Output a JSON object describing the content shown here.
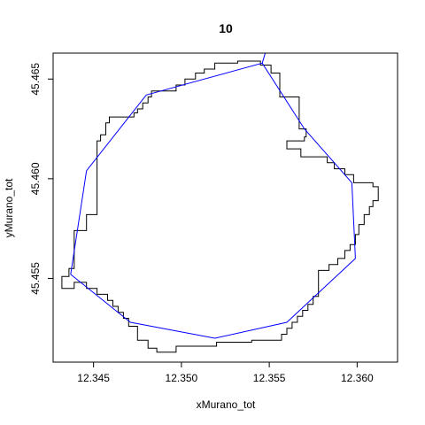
{
  "chart_data": {
    "type": "line",
    "title": "10",
    "xlabel": "xMurano_tot",
    "ylabel": "yMurano_tot",
    "xlim": [
      12.3427,
      12.3623
    ],
    "ylim": [
      45.4508,
      45.4663
    ],
    "x_ticks": [
      "12.345",
      "12.350",
      "12.355",
      "12.360"
    ],
    "y_ticks": [
      "45.455",
      "45.460",
      "45.465"
    ],
    "grid": false,
    "legend": "none",
    "series": [
      {
        "color": "#000000",
        "style": "step-outline",
        "points": [
          [
            12.3432,
            45.4548
          ],
          [
            12.3432,
            45.4551
          ],
          [
            12.3436,
            45.4551
          ],
          [
            12.3436,
            45.4555
          ],
          [
            12.3439,
            45.4555
          ],
          [
            12.3439,
            45.4566
          ],
          [
            12.3439,
            45.4574
          ],
          [
            12.3446,
            45.4574
          ],
          [
            12.3446,
            45.4582
          ],
          [
            12.3452,
            45.4582
          ],
          [
            12.3452,
            45.4609
          ],
          [
            12.3452,
            45.4619
          ],
          [
            12.3454,
            45.4619
          ],
          [
            12.3454,
            45.4622
          ],
          [
            12.3457,
            45.4622
          ],
          [
            12.3457,
            45.4628
          ],
          [
            12.3459,
            45.4628
          ],
          [
            12.3459,
            45.4631
          ],
          [
            12.3473,
            45.4631
          ],
          [
            12.3473,
            45.4633
          ],
          [
            12.3475,
            45.4633
          ],
          [
            12.3475,
            45.4635
          ],
          [
            12.3478,
            45.4635
          ],
          [
            12.3478,
            45.4638
          ],
          [
            12.3481,
            45.4638
          ],
          [
            12.3481,
            45.4641
          ],
          [
            12.3483,
            45.4641
          ],
          [
            12.3483,
            45.4644
          ],
          [
            12.3497,
            45.4644
          ],
          [
            12.3497,
            45.4647
          ],
          [
            12.3502,
            45.4647
          ],
          [
            12.3502,
            45.465
          ],
          [
            12.3508,
            45.465
          ],
          [
            12.3508,
            45.4653
          ],
          [
            12.3513,
            45.4653
          ],
          [
            12.3513,
            45.4655
          ],
          [
            12.3519,
            45.4655
          ],
          [
            12.3519,
            45.4658
          ],
          [
            12.3532,
            45.4658
          ],
          [
            12.3532,
            45.4659
          ],
          [
            12.3545,
            45.4659
          ],
          [
            12.3545,
            45.4657
          ],
          [
            12.3551,
            45.4657
          ],
          [
            12.3551,
            45.4653
          ],
          [
            12.3556,
            45.4653
          ],
          [
            12.3556,
            45.4644
          ],
          [
            12.3556,
            45.4641
          ],
          [
            12.3567,
            45.4641
          ],
          [
            12.3567,
            45.4625
          ],
          [
            12.3571,
            45.4625
          ],
          [
            12.3571,
            45.4621
          ],
          [
            12.357,
            45.4621
          ],
          [
            12.357,
            45.4619
          ],
          [
            12.356,
            45.4619
          ],
          [
            12.356,
            45.4615
          ],
          [
            12.3568,
            45.4615
          ],
          [
            12.3568,
            45.4611
          ],
          [
            12.3583,
            45.4611
          ],
          [
            12.3583,
            45.4608
          ],
          [
            12.3587,
            45.4608
          ],
          [
            12.3587,
            45.4605
          ],
          [
            12.3593,
            45.4605
          ],
          [
            12.3593,
            45.4602
          ],
          [
            12.3598,
            45.4602
          ],
          [
            12.3598,
            45.4598
          ],
          [
            12.3609,
            45.4598
          ],
          [
            12.3609,
            45.4596
          ],
          [
            12.3612,
            45.4596
          ],
          [
            12.3612,
            45.4589
          ],
          [
            12.3609,
            45.4589
          ],
          [
            12.3609,
            45.4586
          ],
          [
            12.3607,
            45.4586
          ],
          [
            12.3607,
            45.4582
          ],
          [
            12.3604,
            45.4582
          ],
          [
            12.3604,
            45.4577
          ],
          [
            12.3601,
            45.4577
          ],
          [
            12.3601,
            45.4572
          ],
          [
            12.3599,
            45.4572
          ],
          [
            12.3599,
            45.4567
          ],
          [
            12.3596,
            45.4567
          ],
          [
            12.3596,
            45.4564
          ],
          [
            12.3593,
            45.4564
          ],
          [
            12.3593,
            45.456
          ],
          [
            12.3589,
            45.456
          ],
          [
            12.3589,
            45.4557
          ],
          [
            12.3584,
            45.4557
          ],
          [
            12.3584,
            45.4554
          ],
          [
            12.3578,
            45.4554
          ],
          [
            12.3578,
            45.4541
          ],
          [
            12.3575,
            45.4541
          ],
          [
            12.3575,
            45.4537
          ],
          [
            12.3572,
            45.4537
          ],
          [
            12.3572,
            45.4534
          ],
          [
            12.3569,
            45.4534
          ],
          [
            12.3569,
            45.4531
          ],
          [
            12.3566,
            45.4531
          ],
          [
            12.3566,
            45.4528
          ],
          [
            12.3563,
            45.4528
          ],
          [
            12.3563,
            45.4525
          ],
          [
            12.356,
            45.4525
          ],
          [
            12.356,
            45.4522
          ],
          [
            12.3557,
            45.4522
          ],
          [
            12.3557,
            45.4519
          ],
          [
            12.354,
            45.4519
          ],
          [
            12.354,
            45.4518
          ],
          [
            12.352,
            45.4518
          ],
          [
            12.352,
            45.4516
          ],
          [
            12.3497,
            45.4516
          ],
          [
            12.3497,
            45.4513
          ],
          [
            12.3486,
            45.4513
          ],
          [
            12.3486,
            45.4515
          ],
          [
            12.3481,
            45.4515
          ],
          [
            12.3481,
            45.4519
          ],
          [
            12.3475,
            45.4519
          ],
          [
            12.3475,
            45.4526
          ],
          [
            12.347,
            45.4526
          ],
          [
            12.347,
            45.453
          ],
          [
            12.3467,
            45.453
          ],
          [
            12.3467,
            45.4533
          ],
          [
            12.3464,
            45.4533
          ],
          [
            12.3464,
            45.4536
          ],
          [
            12.3461,
            45.4536
          ],
          [
            12.3461,
            45.4539
          ],
          [
            12.3458,
            45.4539
          ],
          [
            12.3458,
            45.4542
          ],
          [
            12.3452,
            45.4542
          ],
          [
            12.3452,
            45.4545
          ],
          [
            12.3446,
            45.4545
          ],
          [
            12.3446,
            45.4548
          ],
          [
            12.3439,
            45.4548
          ],
          [
            12.3439,
            45.4545
          ],
          [
            12.3432,
            45.4545
          ],
          [
            12.3432,
            45.4548
          ]
        ]
      },
      {
        "color": "#0000ff",
        "style": "line",
        "points": [
          [
            12.3437,
            45.4552
          ],
          [
            12.3446,
            45.4604
          ],
          [
            12.348,
            45.4642
          ],
          [
            12.3546,
            45.4658
          ],
          [
            12.357,
            45.4625
          ],
          [
            12.3597,
            45.4598
          ],
          [
            12.3599,
            45.456
          ],
          [
            12.356,
            45.4528
          ],
          [
            12.3519,
            45.452
          ],
          [
            12.3471,
            45.4528
          ],
          [
            12.3437,
            45.4552
          ]
        ]
      },
      {
        "color": "#0000ff",
        "style": "line",
        "points": [
          [
            12.3546,
            45.4658
          ],
          [
            12.355,
            45.467
          ]
        ]
      }
    ]
  }
}
